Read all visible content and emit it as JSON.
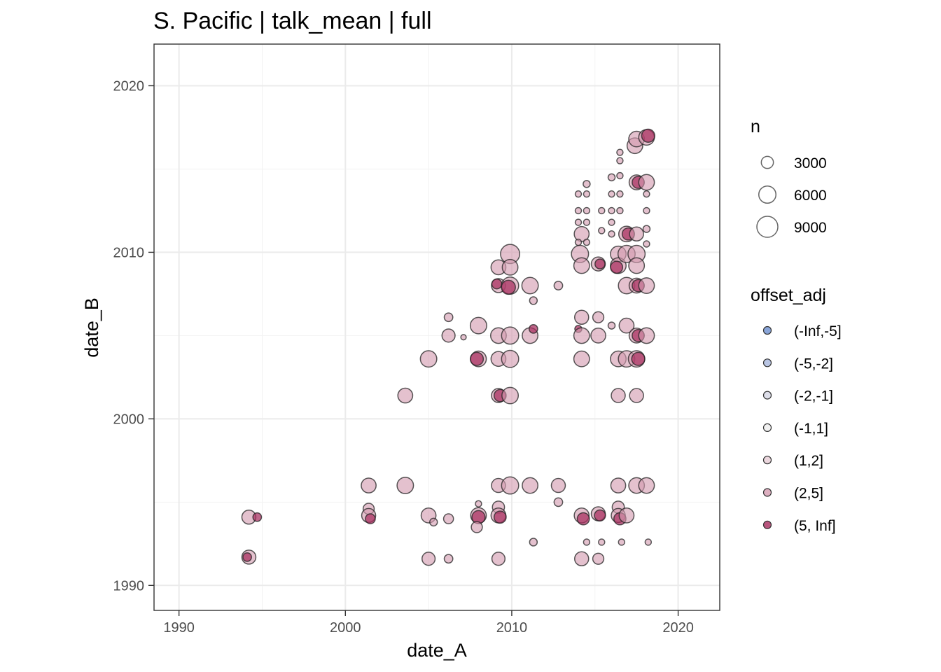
{
  "chart_data": {
    "type": "scatter",
    "title": "S. Pacific | talk_mean | full",
    "xlabel": "date_A",
    "ylabel": "date_B",
    "xlim": [
      1988.5,
      2022.5
    ],
    "ylim": [
      1988.5,
      2022.5
    ],
    "x_ticks": [
      1990,
      2000,
      2010,
      2020
    ],
    "y_ticks": [
      1990,
      2000,
      2010,
      2020
    ],
    "x_tick_labels": [
      "1990",
      "2000",
      "2010",
      "2020"
    ],
    "y_tick_labels": [
      "1990",
      "2000",
      "2010",
      "2020"
    ],
    "grid": true,
    "legend_position": "right",
    "size_legend": {
      "title": "n",
      "entries": [
        {
          "label": "3000",
          "value": 3000
        },
        {
          "label": "6000",
          "value": 6000
        },
        {
          "label": "9000",
          "value": 9000
        }
      ]
    },
    "color_legend": {
      "title": "offset_adj",
      "entries": [
        {
          "label": "(-Inf,-5]",
          "color": "#6c8ed0"
        },
        {
          "label": "(-5,-2]",
          "color": "#a7b6dc"
        },
        {
          "label": "(-2,-1]",
          "color": "#d4d6e4"
        },
        {
          "label": "(-1,1]",
          "color": "#eeeeee"
        },
        {
          "label": "(1,2]",
          "color": "#e6ccd5"
        },
        {
          "label": "(2,5]",
          "color": "#d49bb0"
        },
        {
          "label": "(5, Inf]",
          "color": "#a62b5d"
        }
      ]
    },
    "points": [
      {
        "x": 1994.2,
        "y": 1994.1,
        "n": 4000,
        "offset_adj": "(2,5]"
      },
      {
        "x": 1994.7,
        "y": 1994.1,
        "n": 1500,
        "offset_adj": "(5, Inf]"
      },
      {
        "x": 1994.2,
        "y": 1991.7,
        "n": 4000,
        "offset_adj": "(2,5]"
      },
      {
        "x": 1994.1,
        "y": 1991.7,
        "n": 1500,
        "offset_adj": "(5, Inf]"
      },
      {
        "x": 2001.4,
        "y": 1996.0,
        "n": 4500,
        "offset_adj": "(2,5]"
      },
      {
        "x": 2001.4,
        "y": 1994.6,
        "n": 2500,
        "offset_adj": "(2,5]"
      },
      {
        "x": 2001.4,
        "y": 1994.2,
        "n": 4000,
        "offset_adj": "(2,5]"
      },
      {
        "x": 2001.5,
        "y": 1994.0,
        "n": 2000,
        "offset_adj": "(5, Inf]"
      },
      {
        "x": 2003.6,
        "y": 1996.0,
        "n": 5500,
        "offset_adj": "(2,5]"
      },
      {
        "x": 2003.6,
        "y": 2001.4,
        "n": 4500,
        "offset_adj": "(2,5]"
      },
      {
        "x": 2005.0,
        "y": 2003.6,
        "n": 5500,
        "offset_adj": "(2,5]"
      },
      {
        "x": 2005.0,
        "y": 1994.2,
        "n": 4500,
        "offset_adj": "(2,5]"
      },
      {
        "x": 2005.3,
        "y": 1993.8,
        "n": 1200,
        "offset_adj": "(2,5]"
      },
      {
        "x": 2005.0,
        "y": 1991.6,
        "n": 3500,
        "offset_adj": "(2,5]"
      },
      {
        "x": 2006.2,
        "y": 1994.0,
        "n": 2000,
        "offset_adj": "(2,5]"
      },
      {
        "x": 2006.2,
        "y": 1991.6,
        "n": 1500,
        "offset_adj": "(2,5]"
      },
      {
        "x": 2006.2,
        "y": 2006.1,
        "n": 1500,
        "offset_adj": "(2,5]"
      },
      {
        "x": 2006.2,
        "y": 2005.0,
        "n": 3500,
        "offset_adj": "(2,5]"
      },
      {
        "x": 2007.1,
        "y": 2004.9,
        "n": 600,
        "offset_adj": "(2,5]"
      },
      {
        "x": 2008.0,
        "y": 2005.6,
        "n": 5500,
        "offset_adj": "(2,5]"
      },
      {
        "x": 2008.0,
        "y": 2003.6,
        "n": 5000,
        "offset_adj": "(2,5]"
      },
      {
        "x": 2007.9,
        "y": 2003.6,
        "n": 3500,
        "offset_adj": "(5, Inf]"
      },
      {
        "x": 2008.0,
        "y": 1994.9,
        "n": 800,
        "offset_adj": "(2,5]"
      },
      {
        "x": 2008.0,
        "y": 1994.2,
        "n": 5000,
        "offset_adj": "(2,5]"
      },
      {
        "x": 2008.0,
        "y": 1994.1,
        "n": 3500,
        "offset_adj": "(5, Inf]"
      },
      {
        "x": 2007.9,
        "y": 1993.5,
        "n": 2500,
        "offset_adj": "(2,5]"
      },
      {
        "x": 2009.2,
        "y": 2009.1,
        "n": 4500,
        "offset_adj": "(2,5]"
      },
      {
        "x": 2009.2,
        "y": 2008.0,
        "n": 4000,
        "offset_adj": "(2,5]"
      },
      {
        "x": 2009.1,
        "y": 2008.1,
        "n": 2000,
        "offset_adj": "(5, Inf]"
      },
      {
        "x": 2009.2,
        "y": 2005.0,
        "n": 5000,
        "offset_adj": "(2,5]"
      },
      {
        "x": 2009.2,
        "y": 2003.6,
        "n": 4500,
        "offset_adj": "(2,5]"
      },
      {
        "x": 2009.2,
        "y": 2001.4,
        "n": 4000,
        "offset_adj": "(2,5]"
      },
      {
        "x": 2009.3,
        "y": 2001.4,
        "n": 3000,
        "offset_adj": "(5, Inf]"
      },
      {
        "x": 2009.2,
        "y": 1996.0,
        "n": 4000,
        "offset_adj": "(2,5]"
      },
      {
        "x": 2009.2,
        "y": 1994.7,
        "n": 3000,
        "offset_adj": "(2,5]"
      },
      {
        "x": 2009.2,
        "y": 1994.2,
        "n": 4500,
        "offset_adj": "(2,5]"
      },
      {
        "x": 2009.3,
        "y": 1994.1,
        "n": 3000,
        "offset_adj": "(5, Inf]"
      },
      {
        "x": 2009.2,
        "y": 1991.6,
        "n": 3500,
        "offset_adj": "(2,5]"
      },
      {
        "x": 2009.9,
        "y": 2009.9,
        "n": 7500,
        "offset_adj": "(2,5]"
      },
      {
        "x": 2009.9,
        "y": 2009.1,
        "n": 5000,
        "offset_adj": "(2,5]"
      },
      {
        "x": 2009.9,
        "y": 2008.0,
        "n": 6000,
        "offset_adj": "(2,5]"
      },
      {
        "x": 2009.8,
        "y": 2007.9,
        "n": 4000,
        "offset_adj": "(5, Inf]"
      },
      {
        "x": 2009.9,
        "y": 2005.0,
        "n": 6000,
        "offset_adj": "(2,5]"
      },
      {
        "x": 2009.9,
        "y": 2003.6,
        "n": 6000,
        "offset_adj": "(2,5]"
      },
      {
        "x": 2009.9,
        "y": 2001.4,
        "n": 5500,
        "offset_adj": "(2,5]"
      },
      {
        "x": 2009.9,
        "y": 1996.0,
        "n": 6000,
        "offset_adj": "(2,5]"
      },
      {
        "x": 2011.1,
        "y": 2008.0,
        "n": 5500,
        "offset_adj": "(2,5]"
      },
      {
        "x": 2011.3,
        "y": 2007.1,
        "n": 1200,
        "offset_adj": "(2,5]"
      },
      {
        "x": 2011.1,
        "y": 2005.0,
        "n": 5000,
        "offset_adj": "(2,5]"
      },
      {
        "x": 2011.3,
        "y": 2005.4,
        "n": 1500,
        "offset_adj": "(5, Inf]"
      },
      {
        "x": 2011.1,
        "y": 1996.0,
        "n": 5000,
        "offset_adj": "(2,5]"
      },
      {
        "x": 2011.3,
        "y": 1992.6,
        "n": 1200,
        "offset_adj": "(2,5]"
      },
      {
        "x": 2012.8,
        "y": 2008.0,
        "n": 1500,
        "offset_adj": "(2,5]"
      },
      {
        "x": 2012.8,
        "y": 1996.0,
        "n": 4000,
        "offset_adj": "(2,5]"
      },
      {
        "x": 2012.8,
        "y": 1995.0,
        "n": 1500,
        "offset_adj": "(2,5]"
      },
      {
        "x": 2014.0,
        "y": 2013.5,
        "n": 800,
        "offset_adj": "(2,5]"
      },
      {
        "x": 2014.0,
        "y": 2012.5,
        "n": 800,
        "offset_adj": "(2,5]"
      },
      {
        "x": 2014.0,
        "y": 2011.8,
        "n": 800,
        "offset_adj": "(2,5]"
      },
      {
        "x": 2014.2,
        "y": 2011.1,
        "n": 4500,
        "offset_adj": "(2,5]"
      },
      {
        "x": 2014.0,
        "y": 2010.6,
        "n": 800,
        "offset_adj": "(2,5]"
      },
      {
        "x": 2014.1,
        "y": 2009.9,
        "n": 6000,
        "offset_adj": "(2,5]"
      },
      {
        "x": 2014.2,
        "y": 2009.2,
        "n": 5000,
        "offset_adj": "(2,5]"
      },
      {
        "x": 2014.2,
        "y": 2006.1,
        "n": 4000,
        "offset_adj": "(2,5]"
      },
      {
        "x": 2014.0,
        "y": 2005.4,
        "n": 1000,
        "offset_adj": "(5, Inf]"
      },
      {
        "x": 2014.2,
        "y": 2005.0,
        "n": 5000,
        "offset_adj": "(2,5]"
      },
      {
        "x": 2014.2,
        "y": 2003.6,
        "n": 5000,
        "offset_adj": "(2,5]"
      },
      {
        "x": 2014.2,
        "y": 1994.2,
        "n": 4500,
        "offset_adj": "(2,5]"
      },
      {
        "x": 2014.3,
        "y": 1994.0,
        "n": 3000,
        "offset_adj": "(5, Inf]"
      },
      {
        "x": 2014.2,
        "y": 1991.6,
        "n": 4000,
        "offset_adj": "(2,5]"
      },
      {
        "x": 2014.5,
        "y": 2014.1,
        "n": 1000,
        "offset_adj": "(2,5]"
      },
      {
        "x": 2014.5,
        "y": 2013.5,
        "n": 800,
        "offset_adj": "(2,5]"
      },
      {
        "x": 2014.5,
        "y": 2012.5,
        "n": 800,
        "offset_adj": "(2,5]"
      },
      {
        "x": 2014.5,
        "y": 2011.8,
        "n": 800,
        "offset_adj": "(2,5]"
      },
      {
        "x": 2014.5,
        "y": 2010.6,
        "n": 800,
        "offset_adj": "(2,5]"
      },
      {
        "x": 2014.5,
        "y": 1992.6,
        "n": 800,
        "offset_adj": "(2,5]"
      },
      {
        "x": 2015.2,
        "y": 2009.3,
        "n": 4000,
        "offset_adj": "(2,5]"
      },
      {
        "x": 2015.3,
        "y": 2009.3,
        "n": 2000,
        "offset_adj": "(5, Inf]"
      },
      {
        "x": 2015.2,
        "y": 2006.1,
        "n": 2500,
        "offset_adj": "(2,5]"
      },
      {
        "x": 2015.2,
        "y": 2005.0,
        "n": 4500,
        "offset_adj": "(2,5]"
      },
      {
        "x": 2015.2,
        "y": 1994.3,
        "n": 4000,
        "offset_adj": "(2,5]"
      },
      {
        "x": 2015.3,
        "y": 1994.2,
        "n": 2500,
        "offset_adj": "(5, Inf]"
      },
      {
        "x": 2015.2,
        "y": 1991.6,
        "n": 2500,
        "offset_adj": "(2,5]"
      },
      {
        "x": 2015.4,
        "y": 2012.5,
        "n": 800,
        "offset_adj": "(2,5]"
      },
      {
        "x": 2015.4,
        "y": 2011.3,
        "n": 800,
        "offset_adj": "(2,5]"
      },
      {
        "x": 2015.4,
        "y": 1992.6,
        "n": 800,
        "offset_adj": "(2,5]"
      },
      {
        "x": 2016.0,
        "y": 2014.5,
        "n": 1000,
        "offset_adj": "(2,5]"
      },
      {
        "x": 2016.0,
        "y": 2013.5,
        "n": 800,
        "offset_adj": "(2,5]"
      },
      {
        "x": 2016.0,
        "y": 2012.5,
        "n": 800,
        "offset_adj": "(2,5]"
      },
      {
        "x": 2016.0,
        "y": 2011.8,
        "n": 800,
        "offset_adj": "(2,5]"
      },
      {
        "x": 2016.0,
        "y": 2011.1,
        "n": 800,
        "offset_adj": "(2,5]"
      },
      {
        "x": 2016.0,
        "y": 2005.6,
        "n": 1000,
        "offset_adj": "(2,5]"
      },
      {
        "x": 2016.4,
        "y": 2009.9,
        "n": 5000,
        "offset_adj": "(2,5]"
      },
      {
        "x": 2016.4,
        "y": 2009.2,
        "n": 5000,
        "offset_adj": "(2,5]"
      },
      {
        "x": 2016.3,
        "y": 2009.1,
        "n": 3000,
        "offset_adj": "(5, Inf]"
      },
      {
        "x": 2016.4,
        "y": 2003.6,
        "n": 5000,
        "offset_adj": "(2,5]"
      },
      {
        "x": 2016.4,
        "y": 2001.4,
        "n": 4000,
        "offset_adj": "(2,5]"
      },
      {
        "x": 2016.4,
        "y": 1996.0,
        "n": 4500,
        "offset_adj": "(2,5]"
      },
      {
        "x": 2016.4,
        "y": 1994.7,
        "n": 3000,
        "offset_adj": "(2,5]"
      },
      {
        "x": 2016.4,
        "y": 1994.2,
        "n": 4000,
        "offset_adj": "(2,5]"
      },
      {
        "x": 2016.5,
        "y": 1994.0,
        "n": 3000,
        "offset_adj": "(5, Inf]"
      },
      {
        "x": 2016.5,
        "y": 2016.0,
        "n": 800,
        "offset_adj": "(2,5]"
      },
      {
        "x": 2016.5,
        "y": 2015.5,
        "n": 800,
        "offset_adj": "(2,5]"
      },
      {
        "x": 2016.5,
        "y": 2014.6,
        "n": 800,
        "offset_adj": "(2,5]"
      },
      {
        "x": 2016.5,
        "y": 2013.5,
        "n": 800,
        "offset_adj": "(2,5]"
      },
      {
        "x": 2016.5,
        "y": 2012.5,
        "n": 800,
        "offset_adj": "(2,5]"
      },
      {
        "x": 2016.6,
        "y": 1992.6,
        "n": 800,
        "offset_adj": "(2,5]"
      },
      {
        "x": 2016.9,
        "y": 2011.1,
        "n": 5000,
        "offset_adj": "(2,5]"
      },
      {
        "x": 2017.0,
        "y": 2011.1,
        "n": 3000,
        "offset_adj": "(5, Inf]"
      },
      {
        "x": 2016.9,
        "y": 2009.9,
        "n": 6000,
        "offset_adj": "(2,5]"
      },
      {
        "x": 2016.9,
        "y": 2008.0,
        "n": 5500,
        "offset_adj": "(2,5]"
      },
      {
        "x": 2016.9,
        "y": 2005.6,
        "n": 4500,
        "offset_adj": "(2,5]"
      },
      {
        "x": 2016.9,
        "y": 2003.6,
        "n": 5500,
        "offset_adj": "(2,5]"
      },
      {
        "x": 2016.9,
        "y": 1994.2,
        "n": 4500,
        "offset_adj": "(2,5]"
      },
      {
        "x": 2017.4,
        "y": 2016.4,
        "n": 5000,
        "offset_adj": "(2,5]"
      },
      {
        "x": 2017.5,
        "y": 2016.8,
        "n": 5000,
        "offset_adj": "(2,5]"
      },
      {
        "x": 2017.5,
        "y": 2014.2,
        "n": 4500,
        "offset_adj": "(2,5]"
      },
      {
        "x": 2017.6,
        "y": 2014.2,
        "n": 3000,
        "offset_adj": "(5, Inf]"
      },
      {
        "x": 2017.5,
        "y": 2011.1,
        "n": 4000,
        "offset_adj": "(2,5]"
      },
      {
        "x": 2017.5,
        "y": 2009.9,
        "n": 6000,
        "offset_adj": "(2,5]"
      },
      {
        "x": 2017.5,
        "y": 2009.2,
        "n": 5000,
        "offset_adj": "(2,5]"
      },
      {
        "x": 2017.5,
        "y": 2008.0,
        "n": 4500,
        "offset_adj": "(2,5]"
      },
      {
        "x": 2017.6,
        "y": 2008.0,
        "n": 3000,
        "offset_adj": "(5, Inf]"
      },
      {
        "x": 2017.5,
        "y": 2005.0,
        "n": 4500,
        "offset_adj": "(2,5]"
      },
      {
        "x": 2017.6,
        "y": 2005.0,
        "n": 3000,
        "offset_adj": "(5, Inf]"
      },
      {
        "x": 2017.5,
        "y": 2003.6,
        "n": 5500,
        "offset_adj": "(2,5]"
      },
      {
        "x": 2017.6,
        "y": 2003.6,
        "n": 3500,
        "offset_adj": "(5, Inf]"
      },
      {
        "x": 2017.5,
        "y": 2001.4,
        "n": 4000,
        "offset_adj": "(2,5]"
      },
      {
        "x": 2017.5,
        "y": 1996.0,
        "n": 5000,
        "offset_adj": "(2,5]"
      },
      {
        "x": 2018.1,
        "y": 2016.9,
        "n": 5000,
        "offset_adj": "(2,5]"
      },
      {
        "x": 2018.2,
        "y": 2017.0,
        "n": 3500,
        "offset_adj": "(5, Inf]"
      },
      {
        "x": 2018.1,
        "y": 2014.2,
        "n": 5000,
        "offset_adj": "(2,5]"
      },
      {
        "x": 2018.1,
        "y": 2013.5,
        "n": 800,
        "offset_adj": "(2,5]"
      },
      {
        "x": 2018.1,
        "y": 2012.5,
        "n": 800,
        "offset_adj": "(2,5]"
      },
      {
        "x": 2018.1,
        "y": 2011.4,
        "n": 1000,
        "offset_adj": "(2,5]"
      },
      {
        "x": 2018.1,
        "y": 2010.5,
        "n": 800,
        "offset_adj": "(2,5]"
      },
      {
        "x": 2018.1,
        "y": 2008.0,
        "n": 5000,
        "offset_adj": "(2,5]"
      },
      {
        "x": 2018.1,
        "y": 2005.0,
        "n": 5000,
        "offset_adj": "(2,5]"
      },
      {
        "x": 2018.1,
        "y": 1996.0,
        "n": 5000,
        "offset_adj": "(2,5]"
      },
      {
        "x": 2018.2,
        "y": 1992.6,
        "n": 800,
        "offset_adj": "(2,5]"
      }
    ]
  }
}
